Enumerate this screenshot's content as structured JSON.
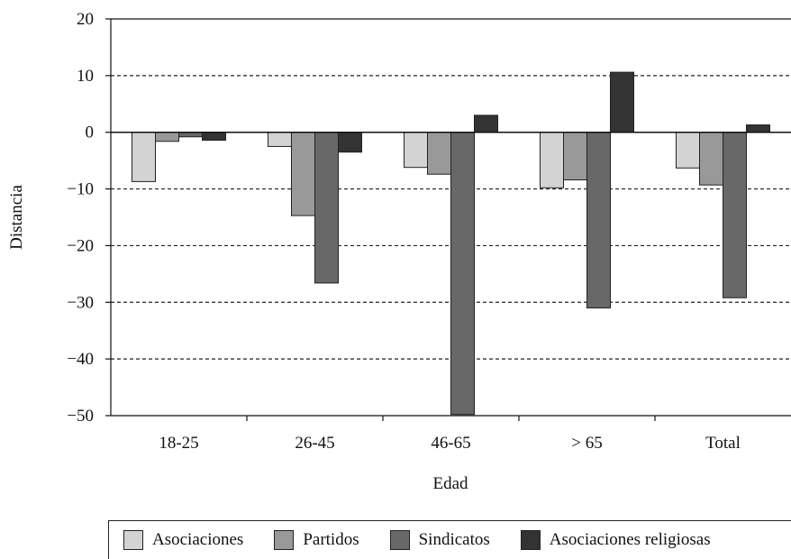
{
  "chart_data": {
    "type": "bar",
    "xlabel": "Edad",
    "ylabel": "Distancia",
    "ylim": [
      -50,
      20
    ],
    "yticks": [
      20,
      10,
      0,
      -10,
      -20,
      -30,
      -40,
      -50
    ],
    "ytick_labels": [
      "20",
      "10",
      "0",
      "−10",
      "−20",
      "−30",
      "−40",
      "−50"
    ],
    "grid": "horizontal dashed",
    "legend_position": "bottom",
    "categories": [
      "18-25",
      "26-45",
      "46-65",
      "> 65",
      "Total"
    ],
    "series": [
      {
        "name": "Asociaciones",
        "color": "#d3d3d3",
        "values": [
          -8.7,
          -2.5,
          -6.2,
          -9.8,
          -6.3
        ]
      },
      {
        "name": "Partidos",
        "color": "#999999",
        "values": [
          -1.6,
          -14.7,
          -7.4,
          -8.4,
          -9.3
        ]
      },
      {
        "name": "Sindicatos",
        "color": "#686868",
        "values": [
          -0.8,
          -26.6,
          -49.8,
          -31.0,
          -29.2
        ]
      },
      {
        "name": "Asociaciones religiosas",
        "color": "#333333",
        "values": [
          -1.4,
          -3.5,
          3.0,
          10.6,
          1.3
        ]
      }
    ]
  }
}
